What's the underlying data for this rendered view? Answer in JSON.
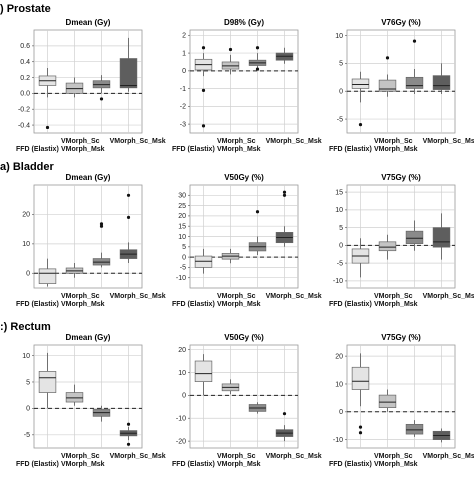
{
  "rows": [
    {
      "title": "Prostate",
      "prefix": ")"
    },
    {
      "title": "Bladder",
      "prefix": "a)"
    },
    {
      "title": "Rectum",
      "prefix": ":)"
    }
  ],
  "category_labels": [
    "FFD (Elastix)",
    "VMorph_Sc",
    "VMorph_Msk",
    "VMorph_Sc_Msk"
  ],
  "category_label_lines": {
    "FFD (Elastix)": "FFD (Elastix)",
    "VMorph_Sc": "VMorph_Sc",
    "VMorph_Msk": "VMorph_Msk",
    "VMorph_Sc_Msk": "VMorph_Sc_Msk"
  },
  "colors": {
    "FFD (Elastix)": "#e4e4e4",
    "VMorph_Sc": "#c4c4c4",
    "VMorph_Msk": "#8a8a8a",
    "VMorph_Sc_Msk": "#5e5e5e"
  },
  "chart_data": [
    {
      "type": "box",
      "row": "Prostate",
      "title": "Dmean (Gy)",
      "ylim": [
        -0.5,
        0.8
      ],
      "yticks": [
        -0.4,
        -0.2,
        0.0,
        0.2,
        0.4,
        0.6
      ],
      "tick_labels": [
        "-0.4",
        "-0.2",
        "0.0",
        "0.2",
        "0.4",
        "0.6"
      ],
      "grid": true,
      "series": [
        {
          "name": "FFD (Elastix)",
          "q1": 0.1,
          "median": 0.16,
          "q3": 0.22,
          "whisker_low": -0.05,
          "whisker_high": 0.32,
          "outliers": [
            -0.43
          ]
        },
        {
          "name": "VMorph_Sc",
          "q1": 0.0,
          "median": 0.06,
          "q3": 0.13,
          "whisker_low": -0.05,
          "whisker_high": 0.2,
          "outliers": []
        },
        {
          "name": "VMorph_Msk",
          "q1": 0.07,
          "median": 0.11,
          "q3": 0.16,
          "whisker_low": 0.0,
          "whisker_high": 0.23,
          "outliers": [
            -0.07
          ]
        },
        {
          "name": "VMorph_Sc_Msk",
          "q1": 0.07,
          "median": 0.1,
          "q3": 0.44,
          "whisker_low": 0.02,
          "whisker_high": 0.7,
          "outliers": []
        }
      ]
    },
    {
      "type": "box",
      "row": "Prostate",
      "title": "D98% (Gy)",
      "ylim": [
        -3.5,
        2.3
      ],
      "yticks": [
        -3,
        -2,
        -1,
        0,
        1,
        2
      ],
      "tick_labels": [
        "-3",
        "-2",
        "-1",
        "0",
        "1",
        "2"
      ],
      "grid": true,
      "series": [
        {
          "name": "FFD (Elastix)",
          "q1": 0.05,
          "median": 0.35,
          "q3": 0.65,
          "whisker_low": -0.3,
          "whisker_high": 1.0,
          "outliers": [
            1.3,
            -1.1,
            -3.1
          ]
        },
        {
          "name": "VMorph_Sc",
          "q1": 0.1,
          "median": 0.28,
          "q3": 0.5,
          "whisker_low": -0.2,
          "whisker_high": 0.9,
          "outliers": [
            1.2
          ]
        },
        {
          "name": "VMorph_Msk",
          "q1": 0.3,
          "median": 0.45,
          "q3": 0.6,
          "whisker_low": 0.1,
          "whisker_high": 1.0,
          "outliers": [
            1.3,
            0.1
          ]
        },
        {
          "name": "VMorph_Sc_Msk",
          "q1": 0.6,
          "median": 0.82,
          "q3": 1.0,
          "whisker_low": 0.4,
          "whisker_high": 1.3,
          "outliers": []
        }
      ]
    },
    {
      "type": "box",
      "row": "Prostate",
      "title": "V76Gy (%)",
      "ylim": [
        -7.5,
        11
      ],
      "yticks": [
        -5,
        0,
        5,
        10
      ],
      "tick_labels": [
        "-5",
        "0",
        "5",
        "10"
      ],
      "grid": true,
      "series": [
        {
          "name": "FFD (Elastix)",
          "q1": 0.5,
          "median": 1.2,
          "q3": 2.2,
          "whisker_low": -2.0,
          "whisker_high": 3.5,
          "outliers": [
            -6.0
          ]
        },
        {
          "name": "VMorph_Sc",
          "q1": 0.0,
          "median": 0.4,
          "q3": 2.0,
          "whisker_low": -1.0,
          "whisker_high": 3.0,
          "outliers": [
            6.0
          ]
        },
        {
          "name": "VMorph_Msk",
          "q1": 0.5,
          "median": 1.0,
          "q3": 2.5,
          "whisker_low": -0.5,
          "whisker_high": 4.0,
          "outliers": [
            9.0
          ]
        },
        {
          "name": "VMorph_Sc_Msk",
          "q1": 0.3,
          "median": 1.0,
          "q3": 2.8,
          "whisker_low": -0.5,
          "whisker_high": 5.0,
          "outliers": []
        }
      ]
    },
    {
      "type": "box",
      "row": "Bladder",
      "title": "Dmean (Gy)",
      "ylim": [
        -5,
        30
      ],
      "yticks": [
        0,
        10,
        20
      ],
      "tick_labels": [
        "0",
        "10",
        "20"
      ],
      "grid": true,
      "series": [
        {
          "name": "FFD (Elastix)",
          "q1": -3.5,
          "median": 0.0,
          "q3": 1.5,
          "whisker_low": -4.5,
          "whisker_high": 5.0,
          "outliers": []
        },
        {
          "name": "VMorph_Sc",
          "q1": 0.0,
          "median": 0.8,
          "q3": 1.8,
          "whisker_low": -1.5,
          "whisker_high": 3.5,
          "outliers": []
        },
        {
          "name": "VMorph_Msk",
          "q1": 2.8,
          "median": 3.8,
          "q3": 5.0,
          "whisker_low": 2.0,
          "whisker_high": 7.0,
          "outliers": [
            16.0,
            16.8
          ]
        },
        {
          "name": "VMorph_Sc_Msk",
          "q1": 5.0,
          "median": 6.5,
          "q3": 8.0,
          "whisker_low": 3.5,
          "whisker_high": 10.5,
          "outliers": [
            19.0,
            26.5
          ]
        }
      ]
    },
    {
      "type": "box",
      "row": "Bladder",
      "title": "V50Gy (%)",
      "ylim": [
        -15,
        35
      ],
      "yticks": [
        -10,
        -5,
        0,
        5,
        10,
        15,
        20,
        25,
        30
      ],
      "tick_labels": [
        "-10",
        "-5",
        "0",
        "5",
        "10",
        "15",
        "20",
        "25",
        "30"
      ],
      "grid": true,
      "series": [
        {
          "name": "FFD (Elastix)",
          "q1": -5.0,
          "median": -2.0,
          "q3": 0.5,
          "whisker_low": -8.0,
          "whisker_high": 4.0,
          "outliers": []
        },
        {
          "name": "VMorph_Sc",
          "q1": -1.0,
          "median": 0.5,
          "q3": 1.8,
          "whisker_low": -3.0,
          "whisker_high": 4.0,
          "outliers": []
        },
        {
          "name": "VMorph_Msk",
          "q1": 3.0,
          "median": 5.0,
          "q3": 7.0,
          "whisker_low": 1.0,
          "whisker_high": 10.0,
          "outliers": [
            22.0
          ]
        },
        {
          "name": "VMorph_Sc_Msk",
          "q1": 7.0,
          "median": 9.5,
          "q3": 12.0,
          "whisker_low": 5.0,
          "whisker_high": 15.0,
          "outliers": [
            30.0,
            31.5
          ]
        }
      ]
    },
    {
      "type": "box",
      "row": "Bladder",
      "title": "V75Gy (%)",
      "ylim": [
        -12,
        17
      ],
      "yticks": [
        -10,
        -5,
        0,
        5,
        10,
        15
      ],
      "tick_labels": [
        "-10",
        "-5",
        "0",
        "5",
        "10",
        "15"
      ],
      "grid": true,
      "series": [
        {
          "name": "FFD (Elastix)",
          "q1": -5.0,
          "median": -3.0,
          "q3": -1.0,
          "whisker_low": -9.0,
          "whisker_high": 2.0,
          "outliers": []
        },
        {
          "name": "VMorph_Sc",
          "q1": -1.5,
          "median": -0.5,
          "q3": 1.0,
          "whisker_low": -4.0,
          "whisker_high": 3.0,
          "outliers": []
        },
        {
          "name": "VMorph_Msk",
          "q1": 0.5,
          "median": 2.0,
          "q3": 4.0,
          "whisker_low": -1.5,
          "whisker_high": 7.0,
          "outliers": []
        },
        {
          "name": "VMorph_Sc_Msk",
          "q1": -0.5,
          "median": 1.0,
          "q3": 5.0,
          "whisker_low": -4.0,
          "whisker_high": 9.0,
          "outliers": []
        }
      ]
    },
    {
      "type": "box",
      "row": "Rectum",
      "title": "Dmean (Gy)",
      "ylim": [
        -7.5,
        12
      ],
      "yticks": [
        -5,
        0,
        5,
        10
      ],
      "tick_labels": [
        "-5",
        "0",
        "5",
        "10"
      ],
      "grid": true,
      "series": [
        {
          "name": "FFD (Elastix)",
          "q1": 3.0,
          "median": 5.8,
          "q3": 7.0,
          "whisker_low": 0.0,
          "whisker_high": 10.5,
          "outliers": []
        },
        {
          "name": "VMorph_Sc",
          "q1": 1.2,
          "median": 2.0,
          "q3": 3.0,
          "whisker_low": 0.5,
          "whisker_high": 4.5,
          "outliers": []
        },
        {
          "name": "VMorph_Msk",
          "q1": -1.5,
          "median": -0.8,
          "q3": -0.2,
          "whisker_low": -2.5,
          "whisker_high": 0.5,
          "outliers": []
        },
        {
          "name": "VMorph_Sc_Msk",
          "q1": -5.2,
          "median": -4.7,
          "q3": -4.2,
          "whisker_low": -6.0,
          "whisker_high": -3.5,
          "outliers": [
            -3.0,
            -6.8
          ]
        }
      ]
    },
    {
      "type": "box",
      "row": "Rectum",
      "title": "V50Gy (%)",
      "ylim": [
        -23,
        22
      ],
      "yticks": [
        -20,
        -10,
        0,
        10,
        20
      ],
      "tick_labels": [
        "-20",
        "-10",
        "0",
        "10",
        "20"
      ],
      "grid": true,
      "series": [
        {
          "name": "FFD (Elastix)",
          "q1": 6.0,
          "median": 9.5,
          "q3": 15.0,
          "whisker_low": 0.0,
          "whisker_high": 18.0,
          "outliers": []
        },
        {
          "name": "VMorph_Sc",
          "q1": 2.0,
          "median": 3.5,
          "q3": 5.0,
          "whisker_low": 0.5,
          "whisker_high": 7.0,
          "outliers": []
        },
        {
          "name": "VMorph_Msk",
          "q1": -7.0,
          "median": -5.5,
          "q3": -4.0,
          "whisker_low": -8.0,
          "whisker_high": -3.0,
          "outliers": []
        },
        {
          "name": "VMorph_Sc_Msk",
          "q1": -18.0,
          "median": -16.5,
          "q3": -15.0,
          "whisker_low": -20.0,
          "whisker_high": -13.0,
          "outliers": [
            -8.0
          ]
        }
      ]
    },
    {
      "type": "box",
      "row": "Rectum",
      "title": "V75Gy (%)",
      "ylim": [
        -13,
        24
      ],
      "yticks": [
        -10,
        0,
        10,
        20
      ],
      "tick_labels": [
        "-10",
        "0",
        "10",
        "20"
      ],
      "grid": true,
      "series": [
        {
          "name": "FFD (Elastix)",
          "q1": 8.0,
          "median": 11.0,
          "q3": 16.0,
          "whisker_low": 2.0,
          "whisker_high": 21.0,
          "outliers": [
            -5.5,
            -7.5
          ]
        },
        {
          "name": "VMorph_Sc",
          "q1": 1.5,
          "median": 3.5,
          "q3": 6.0,
          "whisker_low": 0.0,
          "whisker_high": 8.0,
          "outliers": []
        },
        {
          "name": "VMorph_Msk",
          "q1": -8.0,
          "median": -6.5,
          "q3": -4.5,
          "whisker_low": -9.0,
          "whisker_high": -3.0,
          "outliers": []
        },
        {
          "name": "VMorph_Sc_Msk",
          "q1": -10.0,
          "median": -8.5,
          "q3": -7.0,
          "whisker_low": -11.0,
          "whisker_high": -6.0,
          "outliers": []
        }
      ]
    }
  ]
}
